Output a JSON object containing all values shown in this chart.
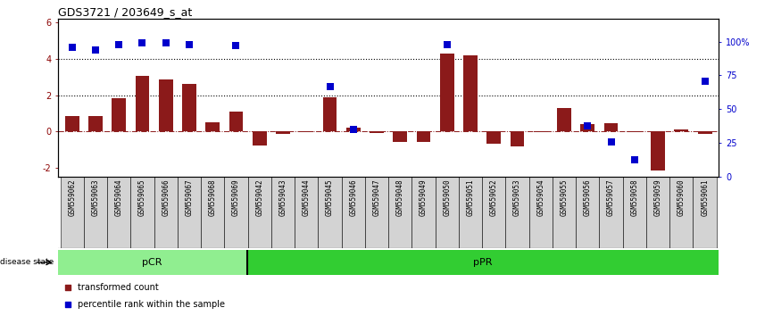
{
  "title": "GDS3721 / 203649_s_at",
  "categories": [
    "GSM559062",
    "GSM559063",
    "GSM559064",
    "GSM559065",
    "GSM559066",
    "GSM559067",
    "GSM559068",
    "GSM559069",
    "GSM559042",
    "GSM559043",
    "GSM559044",
    "GSM559045",
    "GSM559046",
    "GSM559047",
    "GSM559048",
    "GSM559049",
    "GSM559050",
    "GSM559051",
    "GSM559052",
    "GSM559053",
    "GSM559054",
    "GSM559055",
    "GSM559056",
    "GSM559057",
    "GSM559058",
    "GSM559059",
    "GSM559060",
    "GSM559061"
  ],
  "bar_values": [
    0.85,
    0.85,
    1.85,
    3.05,
    2.85,
    2.6,
    0.5,
    1.1,
    -0.75,
    -0.15,
    -0.05,
    1.9,
    0.2,
    -0.1,
    -0.55,
    -0.55,
    4.3,
    4.2,
    -0.65,
    -0.8,
    -0.05,
    1.3,
    0.4,
    0.45,
    -0.05,
    -2.15,
    0.1,
    -0.15
  ],
  "percentile_values": [
    96,
    94,
    98,
    99,
    99,
    98,
    null,
    97,
    null,
    null,
    null,
    67,
    35,
    null,
    null,
    null,
    98,
    null,
    null,
    null,
    null,
    null,
    38,
    26,
    13,
    null,
    null,
    71
  ],
  "bar_color": "#8B1A1A",
  "dot_color": "#0000CC",
  "pcr_count": 8,
  "ppr_count": 20,
  "pcr_label": "pCR",
  "ppr_label": "pPR",
  "pcr_color": "#90EE90",
  "ppr_color": "#32CD32",
  "ylim_left": [
    -2.5,
    6.2
  ],
  "ylim_right": [
    0,
    116.7
  ],
  "yticks_left": [
    -2,
    0,
    2,
    4,
    6
  ],
  "ytick_labels_left": [
    "-2",
    "0",
    "2",
    "4",
    "6"
  ],
  "yticks_right": [
    0,
    25,
    50,
    75,
    100
  ],
  "ytick_labels_right": [
    "0",
    "25",
    "50",
    "75",
    "100%"
  ],
  "dotted_hlines": [
    2,
    4
  ],
  "legend_items": [
    {
      "label": "transformed count",
      "color": "#8B1A1A"
    },
    {
      "label": "percentile rank within the sample",
      "color": "#0000CC"
    }
  ],
  "bar_width": 0.6,
  "dot_size": 30,
  "background_color": "#ffffff",
  "tick_color_left": "#8B0000",
  "tick_color_right": "#0000CC",
  "xticklabel_bg": "#D3D3D3"
}
